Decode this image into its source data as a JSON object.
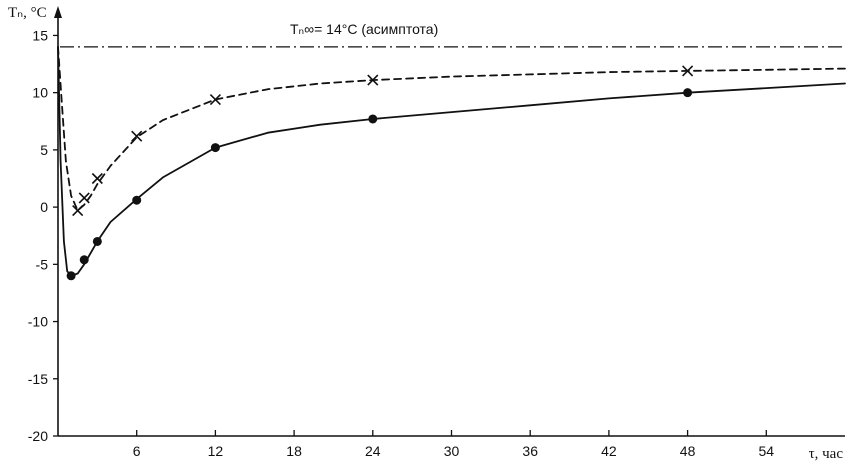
{
  "chart_data": {
    "type": "line",
    "ylabel": "Tₙ, °C",
    "xlabel": "τ, час",
    "xlim": [
      0,
      60
    ],
    "ylim": [
      -20,
      16
    ],
    "xticks": [
      6,
      12,
      18,
      24,
      30,
      36,
      42,
      48,
      54
    ],
    "yticks": [
      15,
      10,
      5,
      0,
      -5,
      -10,
      -15,
      -20
    ],
    "grid": false,
    "asymptote": {
      "value": 14,
      "label": "Tₙ∞= 14°C (асимптота)"
    },
    "series": [
      {
        "style": "dashed",
        "marker": "cross",
        "curve": [
          [
            0,
            14
          ],
          [
            0.3,
            9
          ],
          [
            0.6,
            4
          ],
          [
            1,
            1
          ],
          [
            1.5,
            -0.3
          ],
          [
            2,
            0.2
          ],
          [
            2.5,
            1
          ],
          [
            3,
            2
          ],
          [
            4,
            3.6
          ],
          [
            6,
            6.1
          ],
          [
            8,
            7.6
          ],
          [
            12,
            9.4
          ],
          [
            16,
            10.3
          ],
          [
            20,
            10.8
          ],
          [
            24,
            11.1
          ],
          [
            30,
            11.4
          ],
          [
            36,
            11.6
          ],
          [
            42,
            11.8
          ],
          [
            48,
            11.9
          ],
          [
            54,
            12.0
          ],
          [
            60,
            12.1
          ]
        ],
        "markers": [
          [
            1.5,
            -0.3
          ],
          [
            2,
            0.8
          ],
          [
            3,
            2.5
          ],
          [
            6,
            6.2
          ],
          [
            12,
            9.4
          ],
          [
            24,
            11.1
          ],
          [
            48,
            11.9
          ]
        ]
      },
      {
        "style": "solid",
        "marker": "dot",
        "curve": [
          [
            0,
            14
          ],
          [
            0.2,
            4
          ],
          [
            0.45,
            -3
          ],
          [
            0.7,
            -5.6
          ],
          [
            1,
            -6
          ],
          [
            1.5,
            -5.8
          ],
          [
            2,
            -5
          ],
          [
            3,
            -3
          ],
          [
            4,
            -1.3
          ],
          [
            6,
            0.7
          ],
          [
            8,
            2.6
          ],
          [
            12,
            5.2
          ],
          [
            16,
            6.5
          ],
          [
            20,
            7.2
          ],
          [
            24,
            7.7
          ],
          [
            30,
            8.3
          ],
          [
            36,
            8.9
          ],
          [
            42,
            9.5
          ],
          [
            48,
            10.0
          ],
          [
            54,
            10.4
          ],
          [
            60,
            10.8
          ]
        ],
        "markers": [
          [
            1,
            -6
          ],
          [
            2,
            -4.6
          ],
          [
            3,
            -3
          ],
          [
            6,
            0.6
          ],
          [
            12,
            5.2
          ],
          [
            24,
            7.7
          ],
          [
            48,
            10.0
          ]
        ]
      }
    ]
  }
}
